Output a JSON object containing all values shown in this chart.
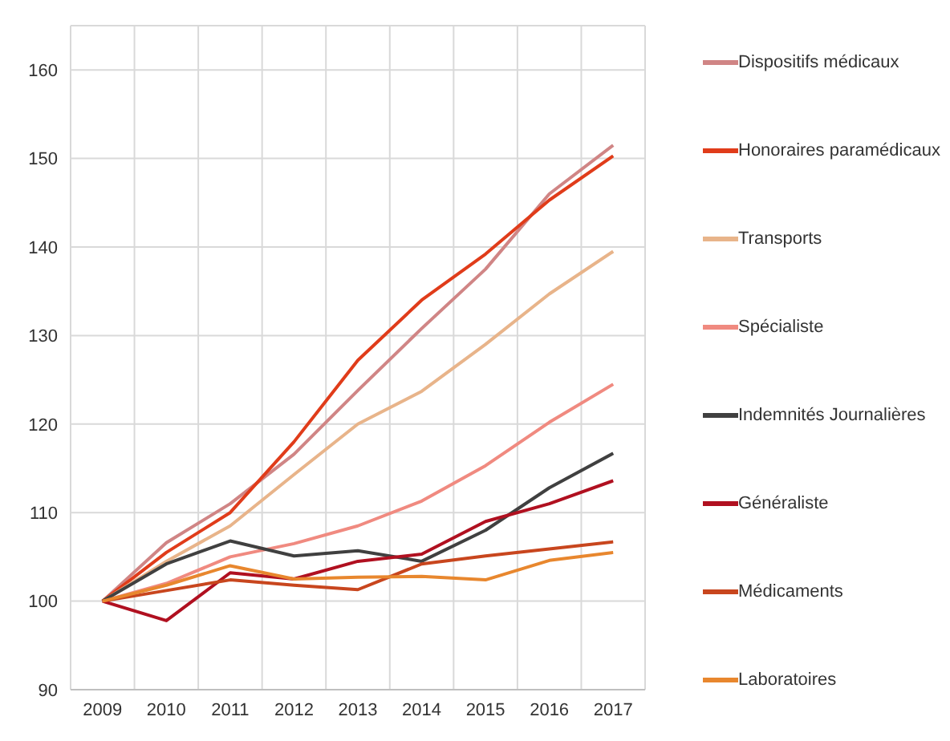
{
  "chart_data": {
    "type": "line",
    "categories": [
      "2009",
      "2010",
      "2011",
      "2012",
      "2013",
      "2014",
      "2015",
      "2016",
      "2017"
    ],
    "series": [
      {
        "name": "Dispositifs médicaux",
        "color": "#d08585",
        "values": [
          100,
          106.6,
          111,
          116.6,
          123.8,
          130.8,
          137.5,
          146,
          151.5
        ]
      },
      {
        "name": "Honoraires paramédicaux",
        "color": "#e03c1a",
        "values": [
          100,
          105.5,
          110,
          118,
          127.2,
          134,
          139.2,
          145.3,
          150.3
        ]
      },
      {
        "name": "Transports",
        "color": "#e8b48a",
        "values": [
          100,
          104.5,
          108.5,
          114.3,
          120,
          123.7,
          129,
          134.7,
          139.5
        ]
      },
      {
        "name": "Spécialiste",
        "color": "#f08a80",
        "values": [
          100,
          102,
          105,
          106.5,
          108.5,
          111.3,
          115.3,
          120.2,
          124.5
        ]
      },
      {
        "name": "Indemnités Journalières",
        "color": "#404040",
        "values": [
          100,
          104.2,
          106.8,
          105.1,
          105.7,
          104.5,
          108,
          112.8,
          116.7
        ]
      },
      {
        "name": "Généraliste",
        "color": "#b01020",
        "values": [
          100,
          97.8,
          103.2,
          102.5,
          104.5,
          105.3,
          109,
          111,
          113.6
        ]
      },
      {
        "name": "Médicaments",
        "color": "#c8461e",
        "values": [
          100,
          101.2,
          102.4,
          101.8,
          101.3,
          104.2,
          105.1,
          105.9,
          106.7
        ]
      },
      {
        "name": "Laboratoires",
        "color": "#e8872e",
        "values": [
          100,
          101.8,
          104,
          102.5,
          102.7,
          102.8,
          102.4,
          104.6,
          105.5
        ]
      }
    ],
    "ylim": [
      90,
      165
    ],
    "yticks": [
      90,
      100,
      110,
      120,
      130,
      140,
      150,
      160
    ],
    "grid": true,
    "legend": "right",
    "marker": "none",
    "line_style": "solid"
  }
}
